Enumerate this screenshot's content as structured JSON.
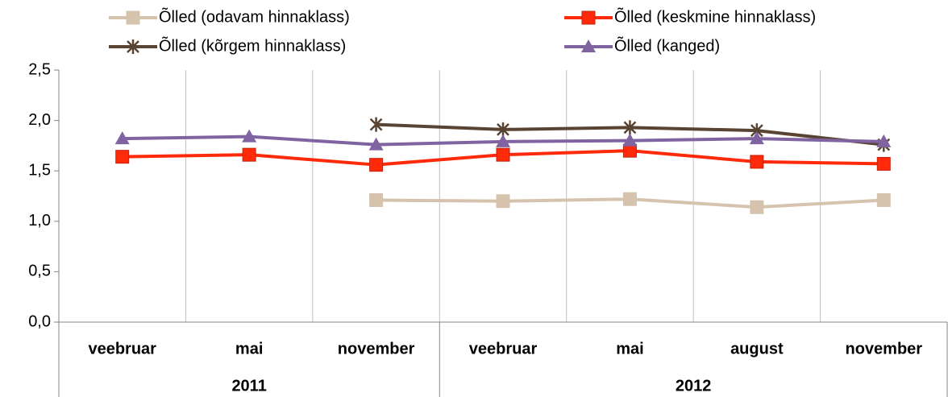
{
  "chart_data": {
    "type": "line",
    "categories": [
      "veebruar",
      "mai",
      "november",
      "veebruar",
      "mai",
      "august",
      "november"
    ],
    "groups": [
      {
        "label": "2011",
        "span": 3
      },
      {
        "label": "2012",
        "span": 4
      }
    ],
    "series": [
      {
        "name": "Õlled (odavam hinnaklass)",
        "color": "#d5c3ae",
        "marker": "square",
        "values": [
          null,
          null,
          1.21,
          1.2,
          1.22,
          1.14,
          1.21
        ]
      },
      {
        "name": "Õlled (keskmine hinnaklass)",
        "color": "#ff2a0a",
        "marker": "square",
        "values": [
          1.64,
          1.66,
          1.56,
          1.66,
          1.7,
          1.59,
          1.57
        ]
      },
      {
        "name": "Õlled (kõrgem hinnaklass)",
        "color": "#594433",
        "marker": "star",
        "values": [
          null,
          null,
          1.96,
          1.91,
          1.93,
          1.9,
          1.76
        ]
      },
      {
        "name": "Õlled (kanged)",
        "color": "#8064a2",
        "marker": "triangle",
        "values": [
          1.82,
          1.84,
          1.76,
          1.79,
          1.8,
          1.82,
          1.79
        ]
      }
    ],
    "ylim": [
      0,
      2.5
    ],
    "yticks": [
      {
        "value": 0,
        "label": "0,0"
      },
      {
        "value": 0.5,
        "label": "0,5"
      },
      {
        "value": 1,
        "label": "1,0"
      },
      {
        "value": 1.5,
        "label": "1,5"
      },
      {
        "value": 2,
        "label": "2,0"
      },
      {
        "value": 2.5,
        "label": "2,5"
      }
    ],
    "grid": true
  }
}
